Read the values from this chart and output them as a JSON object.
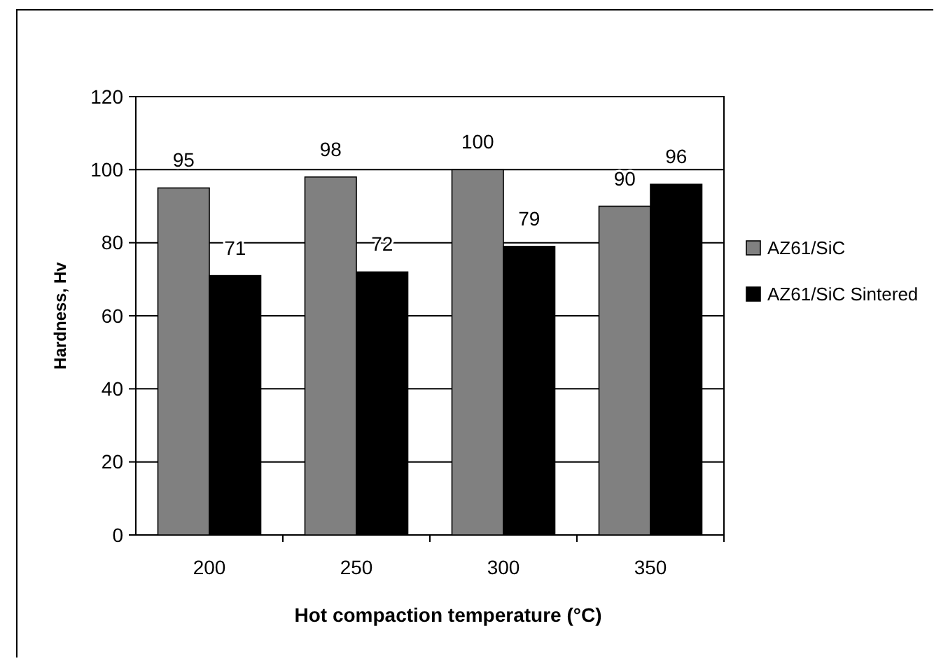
{
  "chart_data": {
    "type": "bar",
    "xlabel": "Hot compaction temperature (°C)",
    "ylabel": "Hardness, Hv",
    "categories": [
      "200",
      "250",
      "300",
      "350"
    ],
    "series": [
      {
        "name": "AZ61/SiC",
        "color": "#808080",
        "values": [
          95,
          98,
          100,
          90
        ]
      },
      {
        "name": "AZ61/SiC Sintered",
        "color": "#000000",
        "values": [
          71,
          72,
          79,
          96
        ]
      }
    ],
    "ylim": [
      0,
      120
    ],
    "yticks": [
      0,
      20,
      40,
      60,
      80,
      100,
      120
    ],
    "grid": "y",
    "legend": "right",
    "data_labels": true
  }
}
